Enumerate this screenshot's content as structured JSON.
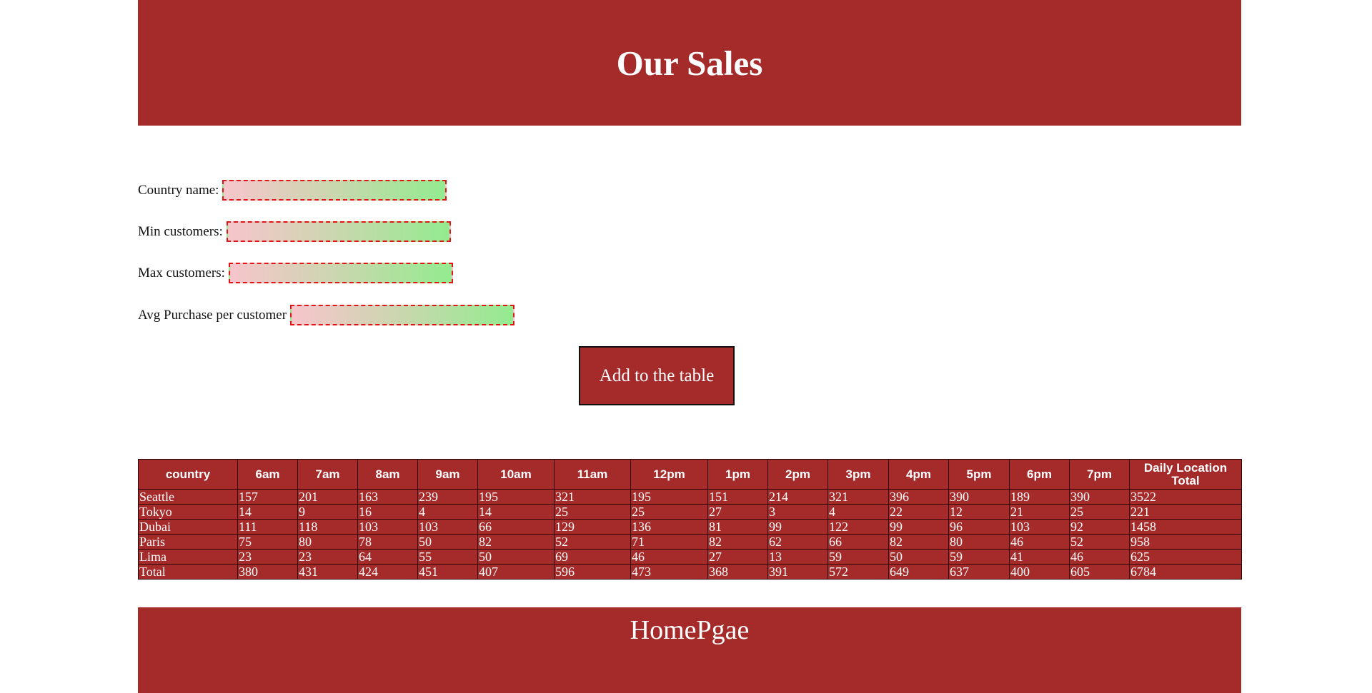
{
  "header": {
    "title": "Our Sales"
  },
  "form": {
    "fields": [
      {
        "label": "Country name:",
        "value": ""
      },
      {
        "label": "Min customers:",
        "value": ""
      },
      {
        "label": "Max customers:",
        "value": ""
      },
      {
        "label": "Avg Purchase per customer",
        "value": ""
      }
    ],
    "submit_label": "Add to the table"
  },
  "table": {
    "headers": [
      "country",
      "6am",
      "7am",
      "8am",
      "9am",
      "10am",
      "11am",
      "12pm",
      "1pm",
      "2pm",
      "3pm",
      "4pm",
      "5pm",
      "6pm",
      "7pm",
      "Daily Location Total"
    ],
    "rows": [
      [
        "Seattle",
        "157",
        "201",
        "163",
        "239",
        "195",
        "321",
        "195",
        "151",
        "214",
        "321",
        "396",
        "390",
        "189",
        "390",
        "3522"
      ],
      [
        "Tokyo",
        "14",
        "9",
        "16",
        "4",
        "14",
        "25",
        "25",
        "27",
        "3",
        "4",
        "22",
        "12",
        "21",
        "25",
        "221"
      ],
      [
        "Dubai",
        "111",
        "118",
        "103",
        "103",
        "66",
        "129",
        "136",
        "81",
        "99",
        "122",
        "99",
        "96",
        "103",
        "92",
        "1458"
      ],
      [
        "Paris",
        "75",
        "80",
        "78",
        "50",
        "82",
        "52",
        "71",
        "82",
        "62",
        "66",
        "82",
        "80",
        "46",
        "52",
        "958"
      ],
      [
        "Lima",
        "23",
        "23",
        "64",
        "55",
        "50",
        "69",
        "46",
        "27",
        "13",
        "59",
        "50",
        "59",
        "41",
        "46",
        "625"
      ],
      [
        "Total",
        "380",
        "431",
        "424",
        "451",
        "407",
        "596",
        "473",
        "368",
        "391",
        "572",
        "649",
        "637",
        "400",
        "605",
        "6784"
      ]
    ]
  },
  "footer": {
    "link_label": "HomePgae"
  },
  "colors": {
    "primary": "#a52a2a",
    "input_border": "#e01515",
    "gradient_start": "#f7c5cc",
    "gradient_end": "#93eb8f"
  }
}
